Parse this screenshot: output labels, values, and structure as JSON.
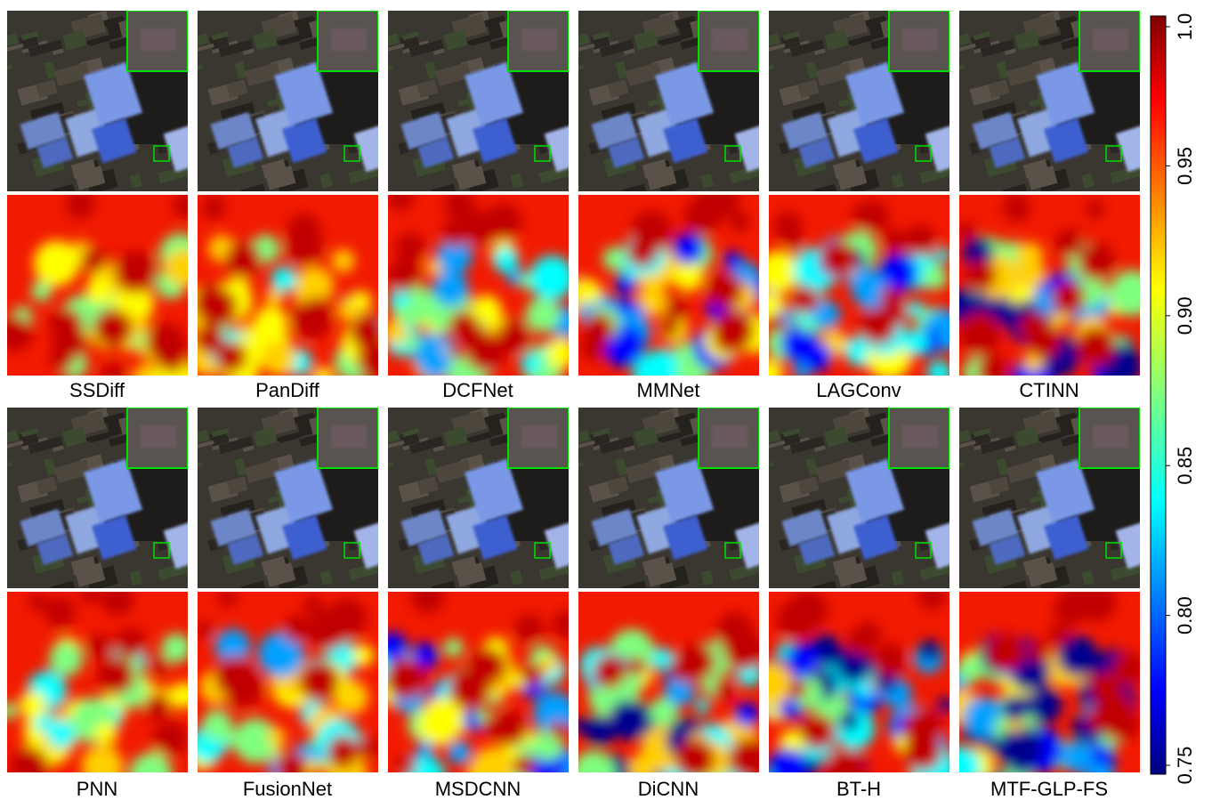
{
  "panels": {
    "labels": [
      "SSDiff",
      "PanDiff",
      "DCFNet",
      "MMNet",
      "LAGConv",
      "CTINN",
      "PNN",
      "FusionNet",
      "MSDCNN",
      "DiCNN",
      "BT-H",
      "MTF-GLP-FS"
    ]
  },
  "colorbar": {
    "lim": [
      0.75,
      1.0
    ],
    "ticks": [
      0.75,
      {
        "value": 0.8,
        "label": "0.80"
      },
      0.85,
      {
        "value": 0.9,
        "label": "0.90"
      },
      0.95,
      {
        "value": 1.0,
        "label": "1.0"
      }
    ]
  }
}
